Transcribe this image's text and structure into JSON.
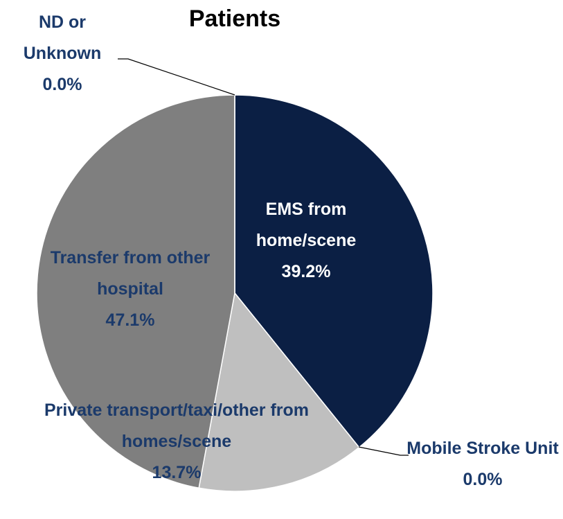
{
  "chart_data": {
    "type": "pie",
    "title": "Patients",
    "categories": [
      "EMS from home/scene",
      "Mobile Stroke Unit",
      "Private transport/taxi/other from homes/scene",
      "Transfer from other hospital",
      "ND or Unknown"
    ],
    "values": [
      39.2,
      0.0,
      13.7,
      47.1,
      0.0
    ],
    "value_labels": [
      "39.2%",
      "0.0%",
      "13.7%",
      "47.1%",
      "0.0%"
    ],
    "colors": [
      "#0b1f44",
      "#0b1f44",
      "#bfbfbf",
      "#7f7f7f",
      "#7f7f7f"
    ]
  }
}
